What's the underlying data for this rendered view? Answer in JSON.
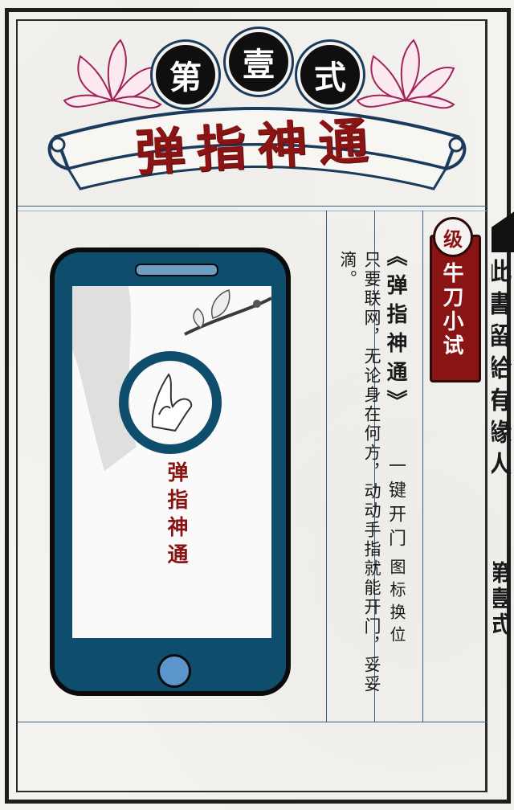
{
  "header": {
    "medals": [
      "第",
      "壹",
      "式"
    ],
    "title": "弹指神通"
  },
  "phone": {
    "screen_title": "弹指神通"
  },
  "description": "只要联网，无论身在何方，动动手指就能开门，妥妥滴。",
  "feature": {
    "name": "《弹指神通》",
    "summary": "一键开门",
    "note": "图标换位"
  },
  "level": {
    "badge": "级",
    "label": "牛刀小试"
  },
  "next_panel": {
    "text": "此書留給有緣人",
    "chapter": "第壹式"
  },
  "colors": {
    "accent_red": "#8a1414",
    "phone_blue": "#0e4e6c",
    "ink": "#1a1a1a"
  }
}
